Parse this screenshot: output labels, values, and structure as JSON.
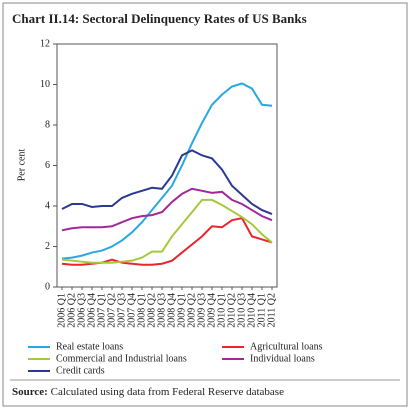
{
  "chart_data": {
    "type": "line",
    "title": "Chart II.14: Sectoral Delinquency Rates of US Banks",
    "y_label": "Per cent",
    "source_label": "Source:",
    "source_text": "Calculated using data from Federal Reserve database",
    "categories": [
      "2006 Q1",
      "2006 Q2",
      "2006 Q3",
      "2006 Q4",
      "2007 Q1",
      "2007 Q2",
      "2007 Q3",
      "2007 Q4",
      "2008 Q1",
      "2008 Q2",
      "2008 Q3",
      "2008 Q4",
      "2009 Q1",
      "2009 Q2",
      "2009 Q3",
      "2009 Q4",
      "2010 Q1",
      "2010 Q2",
      "2010 Q3",
      "2010 Q4",
      "2011 Q1",
      "2011 Q2"
    ],
    "series": [
      {
        "name": "Real estate loans",
        "color": "#29a8e0",
        "values": [
          1.4,
          1.45,
          1.55,
          1.7,
          1.8,
          2.0,
          2.3,
          2.7,
          3.2,
          3.8,
          4.4,
          5.0,
          6.0,
          7.1,
          8.1,
          9.0,
          9.5,
          9.9,
          10.05,
          9.8,
          9.0,
          8.95
        ]
      },
      {
        "name": "Agricultural loans",
        "color": "#e8262c",
        "values": [
          1.15,
          1.1,
          1.1,
          1.15,
          1.2,
          1.35,
          1.2,
          1.15,
          1.1,
          1.1,
          1.15,
          1.3,
          1.7,
          2.1,
          2.5,
          3.0,
          2.95,
          3.3,
          3.4,
          2.5,
          2.35,
          2.2
        ]
      },
      {
        "name": "Commercial and Industrial loans",
        "color": "#a6c83c",
        "values": [
          1.35,
          1.3,
          1.25,
          1.2,
          1.2,
          1.2,
          1.25,
          1.3,
          1.45,
          1.75,
          1.75,
          2.5,
          3.1,
          3.7,
          4.3,
          4.3,
          4.05,
          3.75,
          3.45,
          3.1,
          2.6,
          2.2
        ]
      },
      {
        "name": "Individual loans",
        "color": "#a0289a",
        "values": [
          2.8,
          2.9,
          2.95,
          2.95,
          2.95,
          3.0,
          3.2,
          3.4,
          3.5,
          3.55,
          3.7,
          4.2,
          4.6,
          4.85,
          4.75,
          4.65,
          4.7,
          4.3,
          4.1,
          3.8,
          3.5,
          3.3
        ]
      },
      {
        "name": "Credit cards",
        "color": "#2b3990",
        "values": [
          3.85,
          4.1,
          4.1,
          3.95,
          4.0,
          4.0,
          4.4,
          4.6,
          4.75,
          4.9,
          4.85,
          5.5,
          6.5,
          6.75,
          6.5,
          6.35,
          5.8,
          5.0,
          4.55,
          4.1,
          3.8,
          3.6
        ]
      }
    ],
    "ylim": [
      0,
      12
    ],
    "yticks": [
      0,
      2,
      4,
      6,
      8,
      10,
      12
    ]
  }
}
